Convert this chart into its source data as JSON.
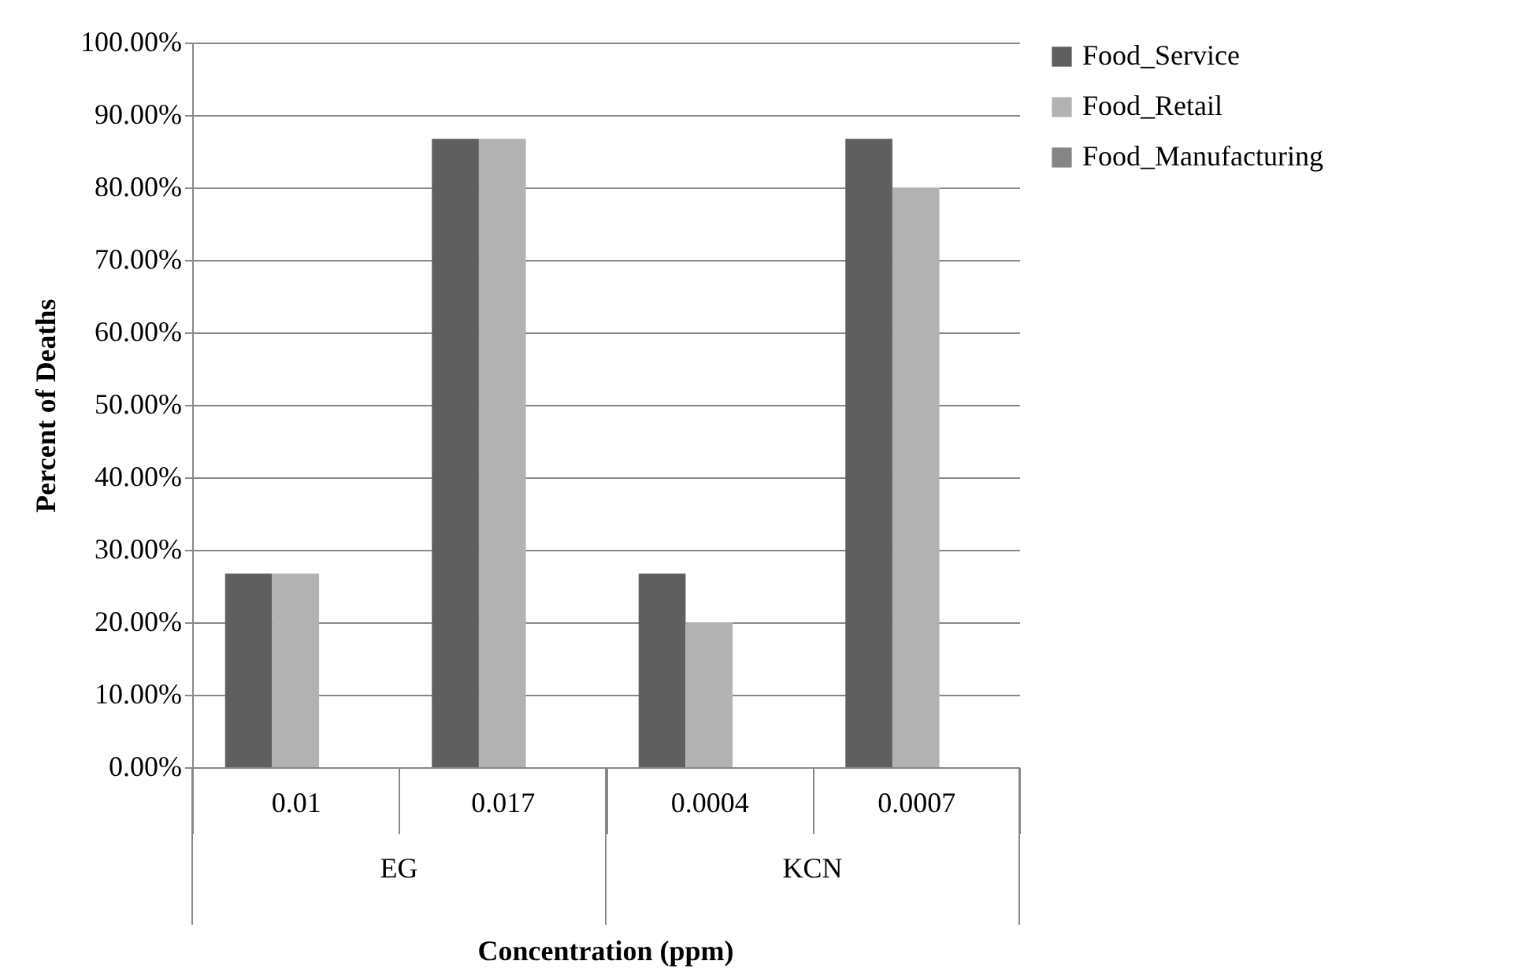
{
  "chart_data": {
    "type": "bar",
    "xlabel": "Concentration (ppm)",
    "ylabel": "Percent of Deaths",
    "categories": [
      "0.01",
      "0.017",
      "0.0004",
      "0.0007"
    ],
    "annotations": [
      "EG",
      "KCN"
    ],
    "series": [
      {
        "name": "Food_Service",
        "color": "#5f5f5f",
        "values": [
          26.7,
          86.7,
          26.7,
          86.7
        ]
      },
      {
        "name": "Food_Retail",
        "color": "#b2b2b2",
        "values": [
          26.7,
          86.7,
          20,
          80
        ]
      },
      {
        "name": "Food_Manufacturing",
        "color": "#858585",
        "values": [
          null,
          null,
          null,
          null
        ]
      }
    ],
    "ylim": [
      0,
      100
    ],
    "yticks": [
      {
        "value": 0,
        "label": "0.00%"
      },
      {
        "value": 10,
        "label": "10.00%"
      },
      {
        "value": 20,
        "label": "20.00%"
      },
      {
        "value": 30,
        "label": "30.00%"
      },
      {
        "value": 40,
        "label": "40.00%"
      },
      {
        "value": 50,
        "label": "50.00%"
      },
      {
        "value": 60,
        "label": "60.00%"
      },
      {
        "value": 70,
        "label": "70.00%"
      },
      {
        "value": 80,
        "label": "80.00%"
      },
      {
        "value": 90,
        "label": "90.00%"
      },
      {
        "value": 100,
        "label": "100.00%"
      }
    ],
    "grid": "y",
    "legend": "right"
  }
}
